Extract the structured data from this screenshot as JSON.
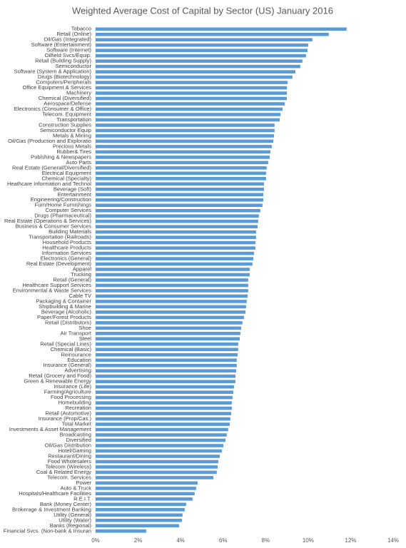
{
  "chart_data": {
    "type": "bar",
    "orientation": "horizontal",
    "title": "Weighted Average Cost of Capital by Sector (US) January 2016",
    "color": "#5b9bd5",
    "categories": [
      "Tobacco",
      "Retail (Online)",
      "Oil/Gas (Integrated)",
      "Software (Entertainment)",
      "Software (Internet)",
      "Oilfield Svcs/Equip.",
      "Retail (Building Supply)",
      "Semiconductor",
      "Software (System & Application)",
      "Drugs (Biotechnology)",
      "Computers/Peripherals",
      "Office Equipment & Services",
      "Machinery",
      "Chemical (Diversified)",
      "Aerospace/Defense",
      "Electronics (Consumer & Office)",
      "Telecom. Equipment",
      "Transportation",
      "Construction Supplies",
      "Semiconductor Equip",
      "Metals & Mining",
      "Oil/Gas (Production and Exploratio",
      "Precious Metals",
      "Rubber& Tires",
      "Publshing & Newspapers",
      "Auto Parts",
      "Real Estate (General/Diversified)",
      "Electrical Equipment",
      "Chemical (Specialty)",
      "Heathcare Information and Technol",
      "Beverage (Soft)",
      "Entertainment",
      "Engineering/Construction",
      "Furn/Home Furnishings",
      "Computer Services",
      "Drugs (Pharmaceutical)",
      "Real Estate (Operations & Services)",
      "Business & Consumer Services",
      "Building Materials",
      "Transportation (Railroads)",
      "Household Products",
      "Healthcare Products",
      "Information Services",
      "Electronics (General)",
      "Real Estate (Development)",
      "Apparel",
      "Trucking",
      "Retail (General)",
      "Healthcare Support Services",
      "Environmental & Waste Services",
      "Cable TV",
      "Packaging & Container",
      "Shipbuilding & Marine",
      "Beverage (Alcoholic)",
      "Paper/Forest Products",
      "Retail (Distributors)",
      "Shoe",
      "Air Transport",
      "Steel",
      "Retail (Special Lines)",
      "Chemical (Basic)",
      "Reinsurance",
      "Education",
      "Insurance (General)",
      "Advertising",
      "Retail (Grocery and Food)",
      "Green & Renewable Energy",
      "Insurance (Life)",
      "Farming/Agriculture",
      "Food Processing",
      "Homebuilding",
      "Recreation",
      "Retail (Automotive)",
      "Insurance (Prop/Cas.)",
      "Total Market",
      "Investments & Asset Management",
      "Broadcasting",
      "Diversified",
      "Oil/Gas Distribution",
      "Hotel/Gaming",
      "Restaurant/Dining",
      "Food Wholesalers",
      "Telecom (Wireless)",
      "Coal & Related Energy",
      "Telecom. Services",
      "Power",
      "Auto & Truck",
      "Hospitals/Healthcare Facilities",
      "R.E.I.T.",
      "Bank (Money Center)",
      "Brokerage & Investment Banking",
      "Utility (General)",
      "Utility (Water)",
      "Banks (Regional)",
      "Financial Svcs. (Non-bank & Insuran"
    ],
    "values": [
      11.81,
      10.97,
      10.2,
      10.0,
      9.97,
      9.9,
      9.73,
      9.63,
      9.4,
      9.26,
      9.03,
      9.0,
      9.0,
      9.0,
      8.9,
      8.8,
      8.7,
      8.66,
      8.42,
      8.42,
      8.39,
      8.36,
      8.29,
      8.22,
      8.19,
      8.12,
      8.05,
      8.02,
      8.02,
      7.92,
      7.92,
      7.89,
      7.89,
      7.85,
      7.75,
      7.68,
      7.65,
      7.62,
      7.55,
      7.55,
      7.52,
      7.52,
      7.45,
      7.42,
      7.38,
      7.25,
      7.25,
      7.18,
      7.18,
      7.18,
      7.15,
      7.11,
      7.08,
      7.05,
      6.98,
      6.91,
      6.85,
      6.81,
      6.78,
      6.71,
      6.71,
      6.68,
      6.64,
      6.64,
      6.61,
      6.58,
      6.58,
      6.51,
      6.48,
      6.44,
      6.41,
      6.41,
      6.38,
      6.34,
      6.31,
      6.24,
      6.17,
      6.11,
      6.01,
      5.94,
      5.84,
      5.77,
      5.74,
      5.7,
      5.54,
      4.8,
      4.73,
      4.66,
      4.56,
      4.26,
      4.19,
      4.09,
      4.06,
      3.93,
      2.38
    ],
    "xlim": [
      0,
      14
    ],
    "xticks": [
      {
        "value": 0,
        "label": "0%"
      },
      {
        "value": 2,
        "label": "2%"
      },
      {
        "value": 4,
        "label": "4%"
      },
      {
        "value": 6,
        "label": "6%"
      },
      {
        "value": 8,
        "label": "8%"
      },
      {
        "value": 10,
        "label": "10%"
      },
      {
        "value": 12,
        "label": "12%"
      },
      {
        "value": 14,
        "label": "14%"
      }
    ]
  }
}
